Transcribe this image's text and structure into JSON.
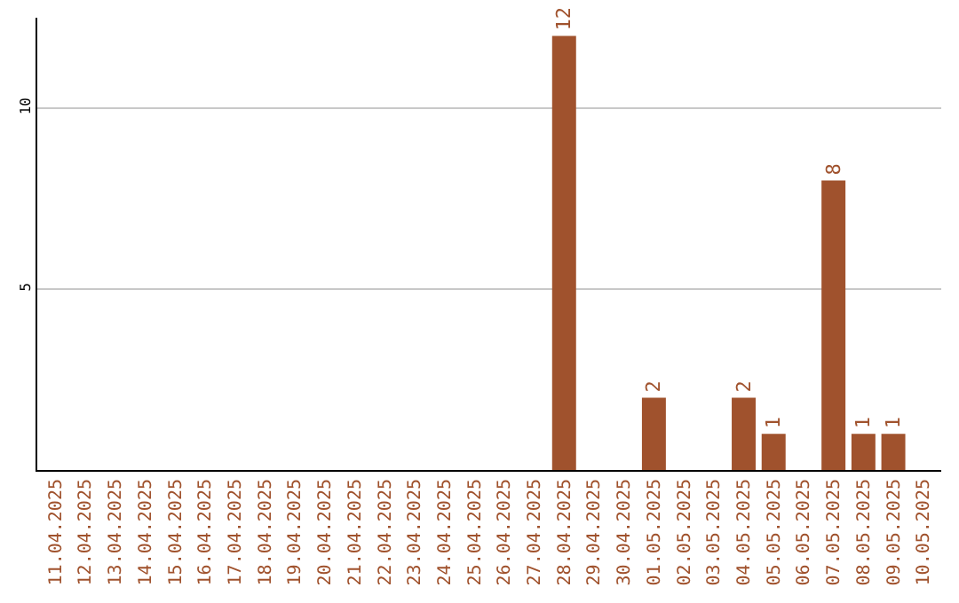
{
  "chart_data": {
    "type": "bar",
    "categories": [
      "11.04.2025",
      "12.04.2025",
      "13.04.2025",
      "14.04.2025",
      "15.04.2025",
      "16.04.2025",
      "17.04.2025",
      "18.04.2025",
      "19.04.2025",
      "20.04.2025",
      "21.04.2025",
      "22.04.2025",
      "23.04.2025",
      "24.04.2025",
      "25.04.2025",
      "26.04.2025",
      "27.04.2025",
      "28.04.2025",
      "29.04.2025",
      "30.04.2025",
      "01.05.2025",
      "02.05.2025",
      "03.05.2025",
      "04.05.2025",
      "05.05.2025",
      "06.05.2025",
      "07.05.2025",
      "08.05.2025",
      "09.05.2025",
      "10.05.2025"
    ],
    "values": [
      0,
      0,
      0,
      0,
      0,
      0,
      0,
      0,
      0,
      0,
      0,
      0,
      0,
      0,
      0,
      0,
      0,
      12,
      0,
      0,
      2,
      0,
      0,
      2,
      1,
      0,
      8,
      1,
      1,
      0
    ],
    "value_labels": [
      null,
      null,
      null,
      null,
      null,
      null,
      null,
      null,
      null,
      null,
      null,
      null,
      null,
      null,
      null,
      null,
      null,
      "12",
      null,
      null,
      "2",
      null,
      null,
      "2",
      "1",
      null,
      "8",
      "1",
      "1",
      null
    ],
    "color": "#a0522d",
    "ylim": [
      0,
      12.5
    ],
    "yticks": [
      5,
      10
    ],
    "grid": "y"
  }
}
